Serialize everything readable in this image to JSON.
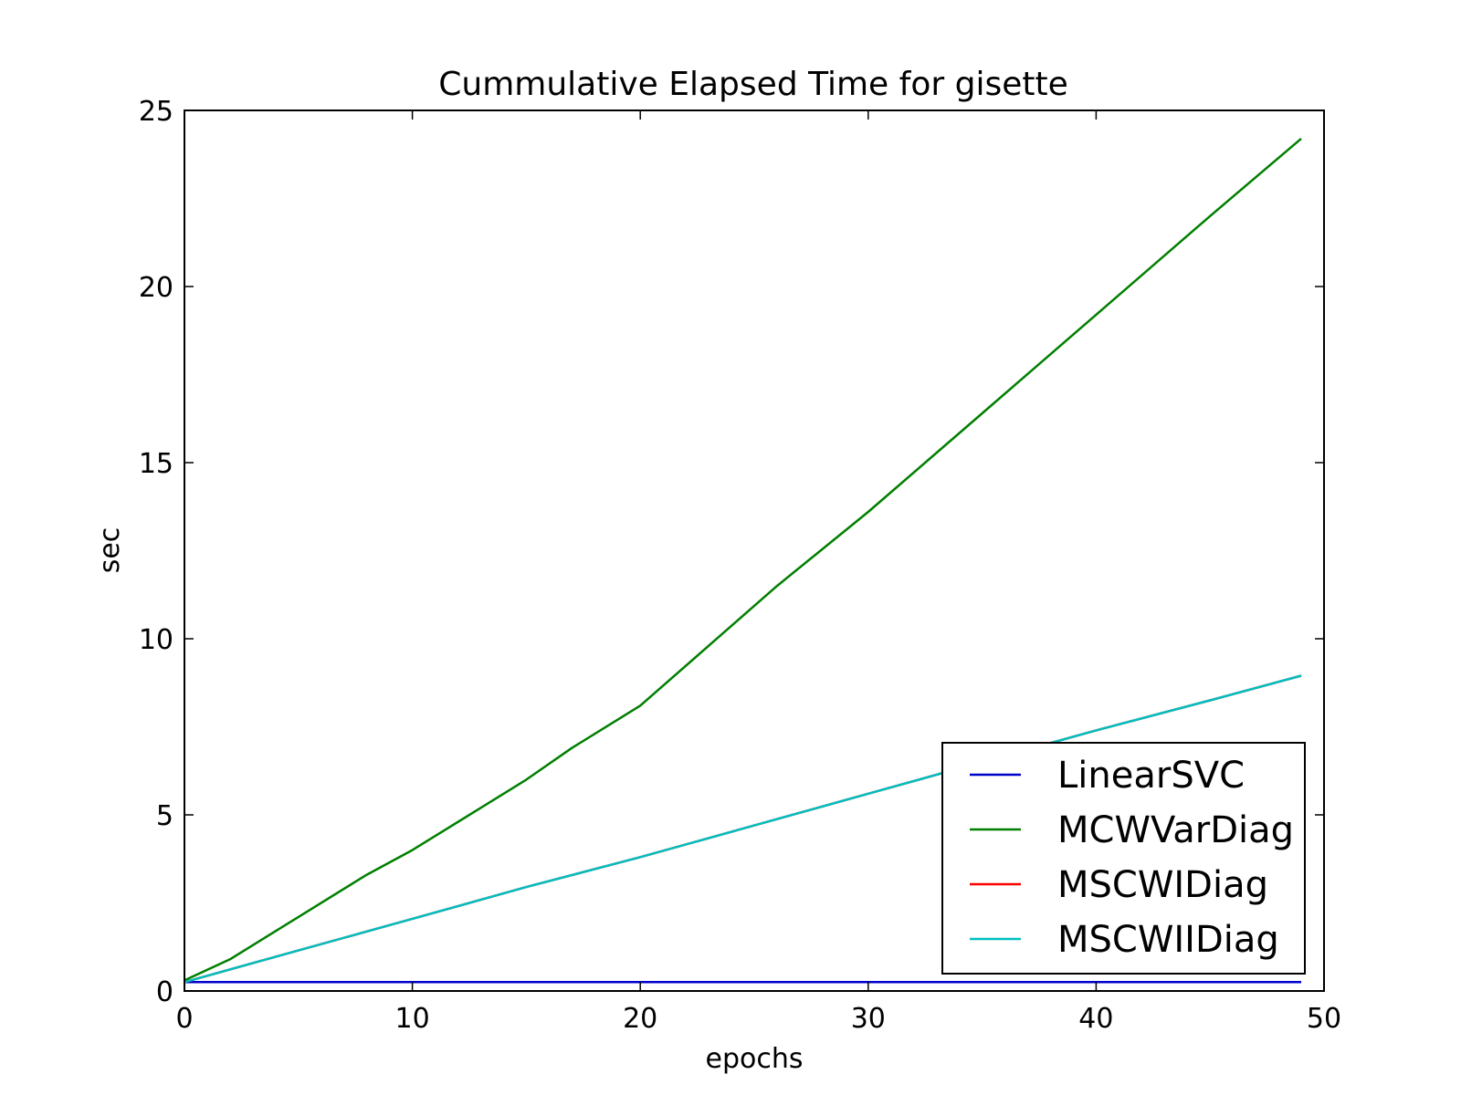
{
  "chart_data": {
    "type": "line",
    "title": "Cummulative Elapsed Time for gisette",
    "xlabel": "epochs",
    "ylabel": "sec",
    "xlim": [
      0,
      50
    ],
    "ylim": [
      0,
      25
    ],
    "xticks": [
      0,
      10,
      20,
      30,
      40,
      50
    ],
    "yticks": [
      0,
      5,
      10,
      15,
      20,
      25
    ],
    "grid": false,
    "legend": "lower-right",
    "series": [
      {
        "name": "LinearSVC",
        "color": "#0000cc",
        "x": [
          0,
          49
        ],
        "y": [
          0.25,
          0.25
        ]
      },
      {
        "name": "MCWVarDiag",
        "color": "#007f00",
        "x": [
          0,
          2,
          3,
          5,
          8,
          10,
          13,
          15,
          17,
          19,
          20,
          23,
          26,
          30,
          35,
          40,
          45,
          49
        ],
        "y": [
          0.3,
          0.9,
          1.3,
          2.1,
          3.3,
          4.0,
          5.2,
          6.0,
          6.9,
          7.7,
          8.1,
          9.8,
          11.5,
          13.6,
          16.4,
          19.2,
          22.0,
          24.2
        ]
      },
      {
        "name": "MSCWIDiag",
        "color": "#ff0000",
        "x": [
          0,
          5,
          10,
          15,
          20,
          25,
          30,
          35,
          40,
          45,
          49
        ],
        "y": [
          0.25,
          1.15,
          2.05,
          2.95,
          3.8,
          4.7,
          5.6,
          6.5,
          7.4,
          8.25,
          8.95
        ]
      },
      {
        "name": "MSCWIIDiag",
        "color": "#00bfbf",
        "x": [
          0,
          5,
          10,
          15,
          20,
          25,
          30,
          35,
          40,
          45,
          49
        ],
        "y": [
          0.25,
          1.15,
          2.05,
          2.95,
          3.8,
          4.7,
          5.6,
          6.5,
          7.4,
          8.25,
          8.95
        ]
      }
    ]
  }
}
